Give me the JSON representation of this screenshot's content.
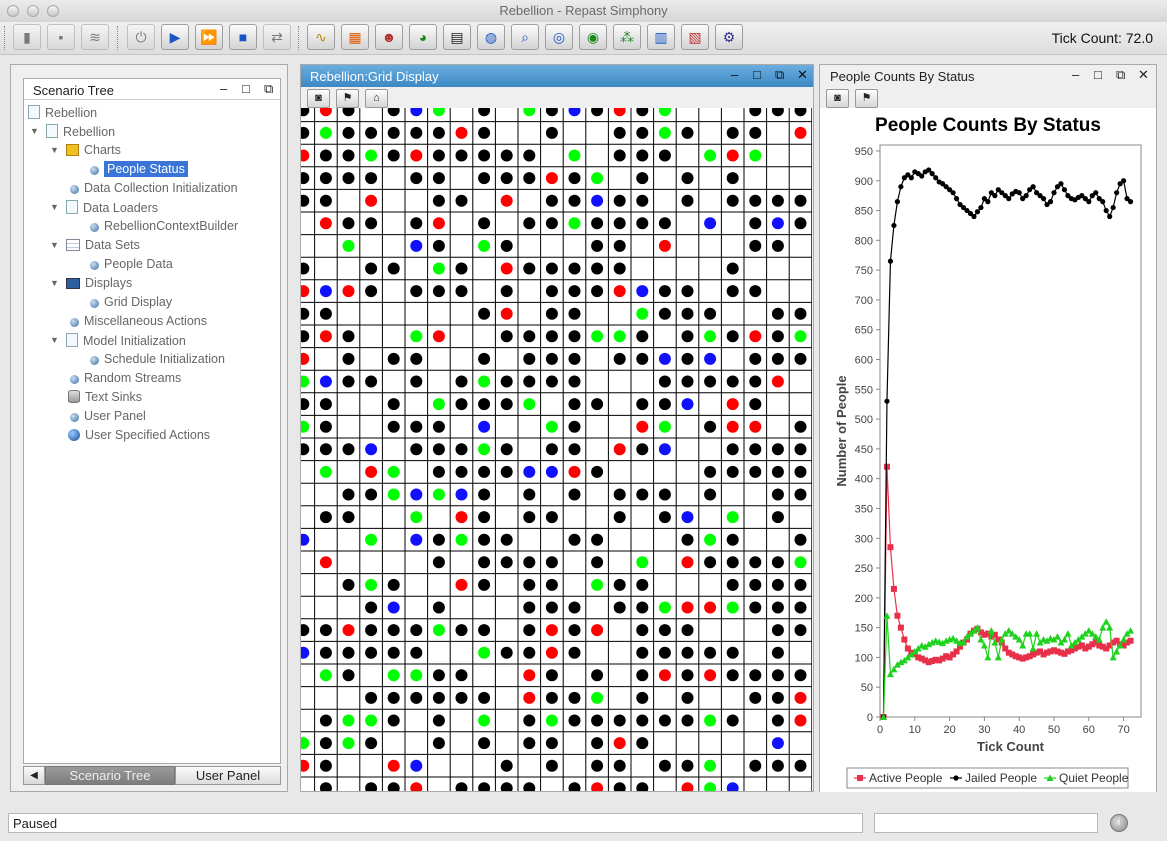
{
  "window": {
    "title": "Rebellion - Repast Simphony"
  },
  "toolbar": {
    "tick_count": "Tick Count: 72.0"
  },
  "tree_panel": {
    "title": "Scenario Tree",
    "items": [
      {
        "label": "Rebellion",
        "level": 0
      },
      {
        "label": "Rebellion",
        "level": 0
      },
      {
        "label": "Charts",
        "level": 1
      },
      {
        "label": "People Status",
        "level": 2
      },
      {
        "label": "Data Collection Initialization",
        "level": 1
      },
      {
        "label": "Data Loaders",
        "level": 1
      },
      {
        "label": "RebellionContextBuilder",
        "level": 2
      },
      {
        "label": "Data Sets",
        "level": 1
      },
      {
        "label": "People Data",
        "level": 2
      },
      {
        "label": "Displays",
        "level": 1
      },
      {
        "label": "Grid Display",
        "level": 2
      },
      {
        "label": "Miscellaneous Actions",
        "level": 1
      },
      {
        "label": "Model Initialization",
        "level": 1
      },
      {
        "label": "Schedule Initialization",
        "level": 2
      },
      {
        "label": "Random Streams",
        "level": 1
      },
      {
        "label": "Text Sinks",
        "level": 1
      },
      {
        "label": "User Panel",
        "level": 1
      },
      {
        "label": "User Specified Actions",
        "level": 1
      }
    ],
    "tabs": [
      "Scenario Tree",
      "User Panel"
    ]
  },
  "grid_panel": {
    "title": "Rebellion:Grid Display"
  },
  "chart_panel": {
    "title": "People Counts By Status"
  },
  "status": {
    "text": "Paused"
  },
  "colors": {
    "active": "#e8304a",
    "jailed": "#000000",
    "quiet": "#1ed21e",
    "agent_blue": "#1010ff",
    "agent_red": "#ff0000",
    "agent_green": "#00ff00",
    "selection": "#3875d7",
    "grid_header": "#5c9fd0"
  },
  "chart_data": {
    "type": "line",
    "title": "People Counts By Status",
    "xlabel": "Tick Count",
    "ylabel": "Number of People",
    "xlim": [
      0,
      75
    ],
    "ylim": [
      0,
      960
    ],
    "xticks": [
      0,
      10,
      20,
      30,
      40,
      50,
      60,
      70
    ],
    "yticks": [
      0,
      50,
      100,
      150,
      200,
      250,
      300,
      350,
      400,
      450,
      500,
      550,
      600,
      650,
      700,
      750,
      800,
      850,
      900,
      950
    ],
    "x": [
      1,
      2,
      3,
      4,
      5,
      6,
      7,
      8,
      9,
      10,
      11,
      12,
      13,
      14,
      15,
      16,
      17,
      18,
      19,
      20,
      21,
      22,
      23,
      24,
      25,
      26,
      27,
      28,
      29,
      30,
      31,
      32,
      33,
      34,
      35,
      36,
      37,
      38,
      39,
      40,
      41,
      42,
      43,
      44,
      45,
      46,
      47,
      48,
      49,
      50,
      51,
      52,
      53,
      54,
      55,
      56,
      57,
      58,
      59,
      60,
      61,
      62,
      63,
      64,
      65,
      66,
      67,
      68,
      69,
      70,
      71,
      72
    ],
    "series": [
      {
        "name": "Active People",
        "color": "#e8304a",
        "marker": "square",
        "values": [
          0,
          420,
          285,
          215,
          170,
          150,
          130,
          115,
          108,
          105,
          100,
          98,
          95,
          92,
          94,
          96,
          95,
          98,
          102,
          100,
          105,
          110,
          118,
          125,
          130,
          140,
          145,
          148,
          142,
          138,
          140,
          135,
          138,
          130,
          125,
          115,
          108,
          105,
          102,
          100,
          98,
          100,
          102,
          105,
          108,
          110,
          105,
          108,
          110,
          112,
          110,
          108,
          106,
          110,
          112,
          115,
          118,
          120,
          115,
          118,
          122,
          125,
          120,
          118,
          115,
          120,
          125,
          128,
          122,
          120,
          125,
          128
        ]
      },
      {
        "name": "Jailed People",
        "color": "#000000",
        "marker": "circle",
        "values": [
          0,
          530,
          765,
          825,
          865,
          890,
          905,
          910,
          905,
          915,
          912,
          908,
          915,
          918,
          912,
          905,
          898,
          895,
          890,
          885,
          880,
          870,
          860,
          855,
          850,
          845,
          840,
          848,
          855,
          870,
          865,
          880,
          875,
          885,
          880,
          875,
          870,
          878,
          882,
          880,
          870,
          875,
          885,
          890,
          880,
          875,
          870,
          860,
          865,
          880,
          890,
          895,
          885,
          875,
          870,
          868,
          872,
          875,
          870,
          865,
          875,
          880,
          870,
          865,
          850,
          840,
          855,
          880,
          895,
          900,
          870,
          865
        ]
      },
      {
        "name": "Quiet People",
        "color": "#1ed21e",
        "marker": "triangle",
        "values": [
          0,
          170,
          72,
          80,
          88,
          92,
          95,
          100,
          105,
          110,
          115,
          120,
          118,
          122,
          125,
          128,
          126,
          124,
          128,
          130,
          132,
          128,
          124,
          126,
          135,
          140,
          145,
          150,
          130,
          120,
          100,
          145,
          125,
          100,
          130,
          140,
          145,
          140,
          135,
          130,
          120,
          140,
          140,
          115,
          140,
          125,
          130,
          128,
          132,
          130,
          135,
          125,
          130,
          140,
          120,
          125,
          130,
          135,
          140,
          145,
          140,
          135,
          130,
          150,
          160,
          150,
          100,
          110,
          120,
          130,
          140,
          145
        ]
      }
    ],
    "legend_position": "bottom",
    "grid": false
  }
}
